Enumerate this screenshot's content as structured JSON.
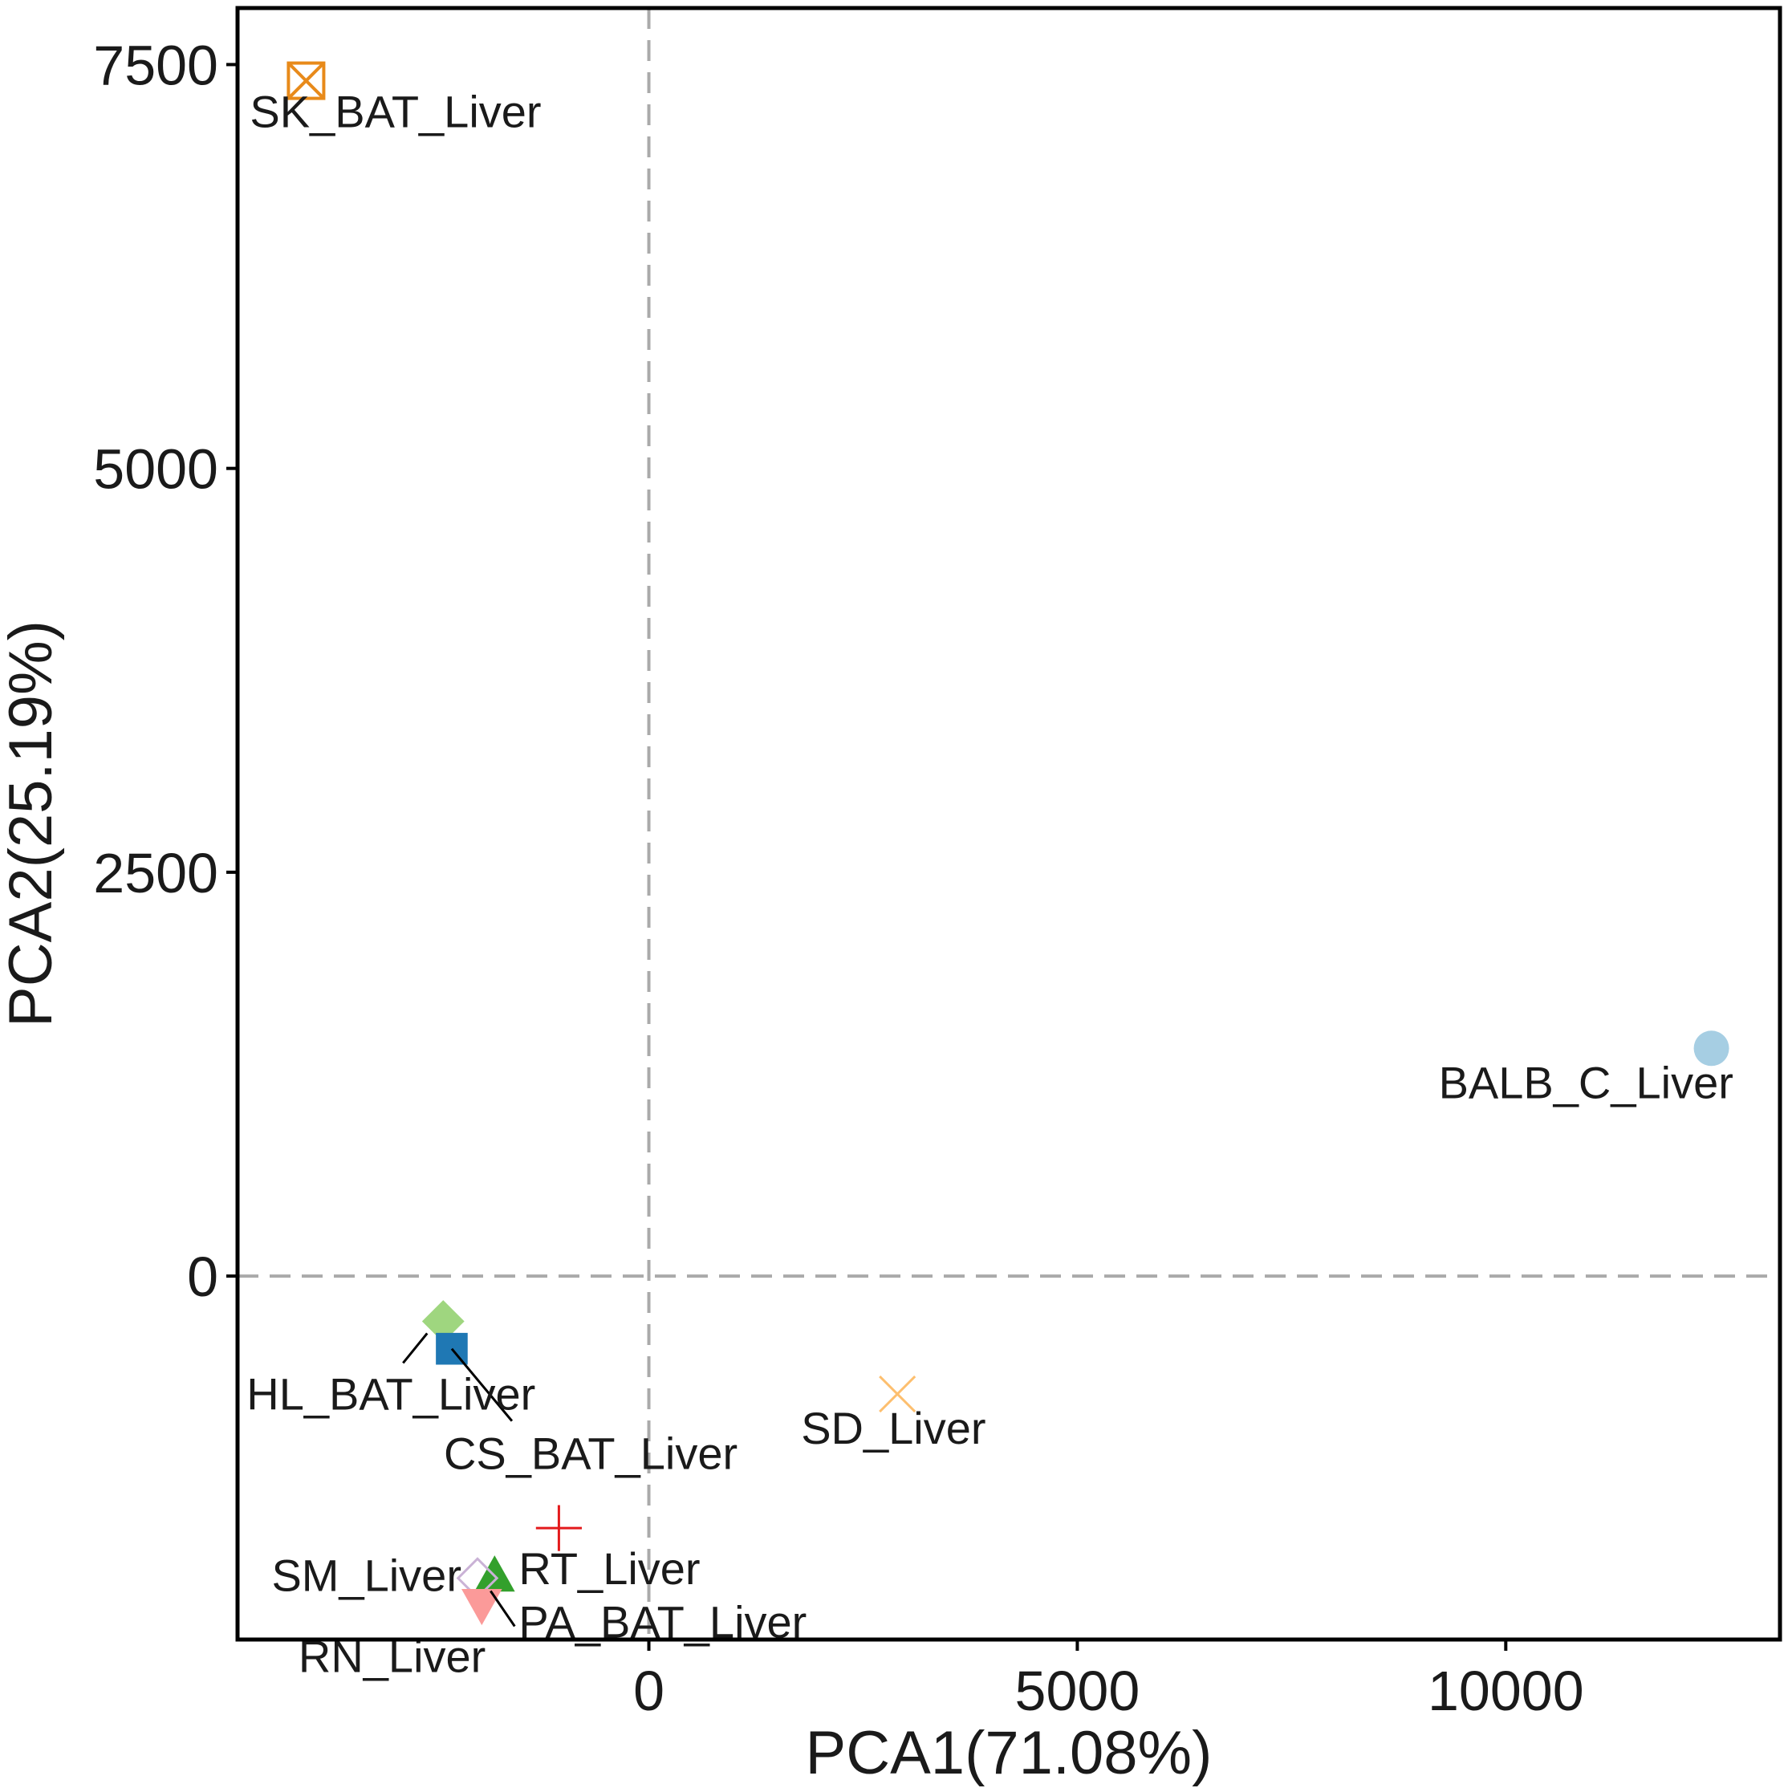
{
  "chart_data": {
    "type": "scatter",
    "xlabel": "PCA1(71.08%)",
    "ylabel": "PCA2(25.19%)",
    "xlim": [
      -4800,
      13200
    ],
    "ylim": [
      -2250,
      7850
    ],
    "xticks": [
      0,
      5000,
      10000
    ],
    "yticks": [
      0,
      2500,
      5000,
      7500
    ],
    "grid": false,
    "reference_lines": {
      "x": 0,
      "y": 0,
      "style": "dashed",
      "color": "#aaaaaa"
    },
    "points": [
      {
        "label": "SK_BAT_Liver",
        "x": -4000,
        "y": 7400,
        "marker": "square-cross",
        "color": "#e88a1a"
      },
      {
        "label": "BALB_C_Liver",
        "x": 12400,
        "y": 1410,
        "marker": "circle",
        "color": "#a6cee3"
      },
      {
        "label": "HL_BAT_Liver",
        "x": -2400,
        "y": -280,
        "marker": "diamond",
        "color": "#9fd67f"
      },
      {
        "label": "CS_BAT_Liver",
        "x": -2300,
        "y": -450,
        "marker": "square",
        "color": "#1f78b4"
      },
      {
        "label": "SD_Liver",
        "x": 2900,
        "y": -730,
        "marker": "x",
        "color": "#fdbf6f"
      },
      {
        "label": "RT_Liver",
        "x": -1050,
        "y": -1560,
        "marker": "plus",
        "color": "#e31a1c"
      },
      {
        "label": "PA_BAT_Liver",
        "x": -1800,
        "y": -1860,
        "marker": "triangle",
        "color": "#33a02c"
      },
      {
        "label": "SM_Liver",
        "x": -2000,
        "y": -1870,
        "marker": "diamond-open",
        "color": "#cab2d6"
      },
      {
        "label": "RN_Liver",
        "x": -1950,
        "y": -2030,
        "marker": "triangle-down",
        "color": "#fb9a99"
      }
    ]
  }
}
